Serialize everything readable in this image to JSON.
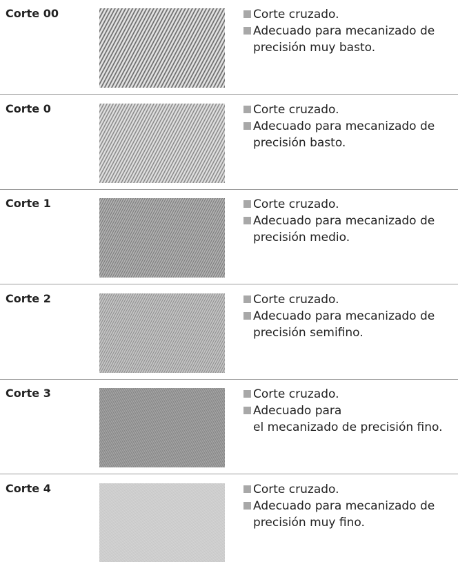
{
  "rows": [
    {
      "label": "Corte 00",
      "bullets": [
        {
          "lines": [
            "Corte cruzado."
          ]
        },
        {
          "lines": [
            "Adecuado para mecanizado de",
            "precisión muy basto."
          ]
        }
      ]
    },
    {
      "label": "Corte 0",
      "bullets": [
        {
          "lines": [
            "Corte cruzado."
          ]
        },
        {
          "lines": [
            "Adecuado para mecanizado de",
            "precisión basto."
          ]
        }
      ]
    },
    {
      "label": "Corte 1",
      "bullets": [
        {
          "lines": [
            "Corte cruzado."
          ]
        },
        {
          "lines": [
            "Adecuado para mecanizado de",
            "precisión medio."
          ]
        }
      ]
    },
    {
      "label": "Corte 2",
      "bullets": [
        {
          "lines": [
            "Corte cruzado."
          ]
        },
        {
          "lines": [
            "Adecuado para mecanizado de",
            "precisión semifino."
          ]
        }
      ]
    },
    {
      "label": "Corte 3",
      "bullets": [
        {
          "lines": [
            "Corte cruzado."
          ]
        },
        {
          "lines": [
            "Adecuado para",
            "el mecanizado de precisión fino."
          ]
        }
      ]
    },
    {
      "label": "Corte 4",
      "bullets": [
        {
          "lines": [
            "Corte cruzado."
          ]
        },
        {
          "lines": [
            "Adecuado para mecanizado de",
            "precisión muy fino."
          ]
        }
      ]
    }
  ]
}
